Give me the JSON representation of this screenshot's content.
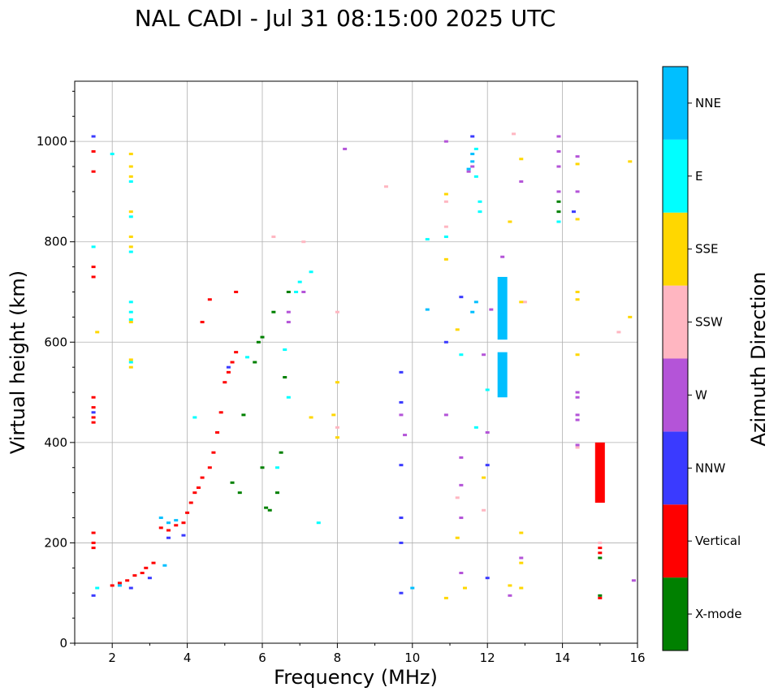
{
  "chart_data": {
    "type": "scatter",
    "title": "NAL CADI - Jul 31 08:15:00 2025 UTC",
    "xlabel": "Frequency (MHz)",
    "ylabel": "Virtual height (km)",
    "xlim": [
      1,
      16
    ],
    "ylim": [
      0,
      1120
    ],
    "xticks": [
      2,
      4,
      6,
      8,
      10,
      12,
      14,
      16
    ],
    "yticks": [
      0,
      200,
      400,
      600,
      800,
      1000
    ],
    "grid": true,
    "colorbar": {
      "label": "Azimuth Direction",
      "categories": [
        {
          "name": "X-mode",
          "color": "#008000"
        },
        {
          "name": "Vertical",
          "color": "#ff0000"
        },
        {
          "name": "NNW",
          "color": "#3a3aff"
        },
        {
          "name": "W",
          "color": "#b454d8"
        },
        {
          "name": "SSW",
          "color": "#ffb6c1"
        },
        {
          "name": "SSE",
          "color": "#ffd700"
        },
        {
          "name": "E",
          "color": "#00ffff"
        },
        {
          "name": "NNE",
          "color": "#00bfff"
        }
      ]
    },
    "series": [
      {
        "name": "Vertical",
        "points": [
          [
            1.5,
            980
          ],
          [
            1.5,
            940
          ],
          [
            1.5,
            750
          ],
          [
            1.5,
            730
          ],
          [
            1.5,
            490
          ],
          [
            1.5,
            470
          ],
          [
            1.5,
            450
          ],
          [
            1.5,
            440
          ],
          [
            1.5,
            220
          ],
          [
            1.5,
            200
          ],
          [
            1.5,
            190
          ],
          [
            2.0,
            115
          ],
          [
            2.2,
            120
          ],
          [
            2.4,
            125
          ],
          [
            2.6,
            135
          ],
          [
            2.8,
            140
          ],
          [
            2.9,
            150
          ],
          [
            3.1,
            160
          ],
          [
            3.3,
            230
          ],
          [
            3.5,
            225
          ],
          [
            3.7,
            235
          ],
          [
            3.9,
            240
          ],
          [
            4.0,
            260
          ],
          [
            4.1,
            280
          ],
          [
            4.2,
            300
          ],
          [
            4.3,
            310
          ],
          [
            4.4,
            330
          ],
          [
            4.6,
            350
          ],
          [
            4.7,
            380
          ],
          [
            4.8,
            420
          ],
          [
            4.9,
            460
          ],
          [
            5.0,
            520
          ],
          [
            5.1,
            540
          ],
          [
            5.2,
            560
          ],
          [
            5.3,
            580
          ],
          [
            4.4,
            640
          ],
          [
            4.6,
            685
          ],
          [
            5.3,
            700
          ],
          [
            15.0,
            390
          ],
          [
            15.0,
            370
          ],
          [
            15.0,
            350
          ],
          [
            15.0,
            330
          ],
          [
            15.0,
            310
          ],
          [
            15.0,
            290
          ],
          [
            15.0,
            190
          ],
          [
            15.0,
            180
          ],
          [
            15.0,
            90
          ]
        ]
      },
      {
        "name": "X-mode",
        "points": [
          [
            5.5,
            455
          ],
          [
            5.8,
            560
          ],
          [
            5.9,
            600
          ],
          [
            6.0,
            610
          ],
          [
            6.0,
            350
          ],
          [
            6.1,
            270
          ],
          [
            6.2,
            265
          ],
          [
            6.4,
            300
          ],
          [
            6.5,
            380
          ],
          [
            6.3,
            660
          ],
          [
            6.6,
            530
          ],
          [
            6.7,
            700
          ],
          [
            5.4,
            300
          ],
          [
            5.2,
            320
          ],
          [
            13.9,
            860
          ],
          [
            13.9,
            880
          ],
          [
            15.0,
            170
          ],
          [
            15.0,
            95
          ]
        ]
      },
      {
        "name": "NNW",
        "points": [
          [
            1.5,
            1010
          ],
          [
            1.5,
            460
          ],
          [
            1.5,
            95
          ],
          [
            2.5,
            110
          ],
          [
            3.0,
            130
          ],
          [
            3.5,
            210
          ],
          [
            3.9,
            215
          ],
          [
            5.1,
            550
          ],
          [
            9.7,
            540
          ],
          [
            9.7,
            480
          ],
          [
            9.7,
            355
          ],
          [
            9.7,
            250
          ],
          [
            9.7,
            200
          ],
          [
            9.7,
            100
          ],
          [
            10.9,
            600
          ],
          [
            11.6,
            1010
          ],
          [
            11.3,
            690
          ],
          [
            12.0,
            355
          ],
          [
            12.0,
            130
          ],
          [
            14.3,
            860
          ]
        ]
      },
      {
        "name": "W",
        "points": [
          [
            6.7,
            640
          ],
          [
            6.7,
            660
          ],
          [
            7.1,
            700
          ],
          [
            8.2,
            985
          ],
          [
            9.7,
            455
          ],
          [
            9.8,
            415
          ],
          [
            10.9,
            1000
          ],
          [
            10.9,
            455
          ],
          [
            11.3,
            370
          ],
          [
            11.3,
            315
          ],
          [
            11.3,
            250
          ],
          [
            11.3,
            140
          ],
          [
            11.5,
            940
          ],
          [
            11.6,
            950
          ],
          [
            11.9,
            575
          ],
          [
            12.0,
            420
          ],
          [
            12.1,
            665
          ],
          [
            12.4,
            770
          ],
          [
            12.6,
            95
          ],
          [
            12.9,
            920
          ],
          [
            12.9,
            170
          ],
          [
            13.9,
            1010
          ],
          [
            13.9,
            980
          ],
          [
            13.9,
            950
          ],
          [
            13.9,
            900
          ],
          [
            13.9,
            840
          ],
          [
            14.4,
            970
          ],
          [
            14.4,
            900
          ],
          [
            14.4,
            500
          ],
          [
            14.4,
            490
          ],
          [
            14.4,
            455
          ],
          [
            14.4,
            445
          ],
          [
            14.4,
            395
          ],
          [
            15.9,
            125
          ]
        ]
      },
      {
        "name": "SSW",
        "points": [
          [
            6.3,
            810
          ],
          [
            7.1,
            800
          ],
          [
            8.0,
            660
          ],
          [
            8.0,
            430
          ],
          [
            9.3,
            910
          ],
          [
            10.9,
            830
          ],
          [
            10.9,
            880
          ],
          [
            11.2,
            290
          ],
          [
            11.9,
            265
          ],
          [
            12.7,
            1015
          ],
          [
            13.0,
            680
          ],
          [
            14.4,
            390
          ],
          [
            15.0,
            200
          ],
          [
            15.5,
            620
          ]
        ]
      },
      {
        "name": "SSE",
        "points": [
          [
            2.5,
            975
          ],
          [
            2.5,
            950
          ],
          [
            2.5,
            930
          ],
          [
            2.5,
            860
          ],
          [
            2.5,
            810
          ],
          [
            2.5,
            790
          ],
          [
            2.5,
            640
          ],
          [
            2.5,
            565
          ],
          [
            2.5,
            550
          ],
          [
            1.6,
            620
          ],
          [
            7.3,
            450
          ],
          [
            7.9,
            455
          ],
          [
            8.0,
            520
          ],
          [
            8.0,
            410
          ],
          [
            10.9,
            895
          ],
          [
            10.9,
            765
          ],
          [
            10.9,
            90
          ],
          [
            11.2,
            625
          ],
          [
            11.2,
            210
          ],
          [
            11.4,
            110
          ],
          [
            11.9,
            330
          ],
          [
            12.6,
            840
          ],
          [
            12.6,
            115
          ],
          [
            12.9,
            965
          ],
          [
            12.9,
            680
          ],
          [
            12.9,
            220
          ],
          [
            12.9,
            160
          ],
          [
            12.9,
            110
          ],
          [
            14.4,
            955
          ],
          [
            14.4,
            845
          ],
          [
            14.4,
            700
          ],
          [
            14.4,
            685
          ],
          [
            14.4,
            575
          ],
          [
            15.8,
            960
          ],
          [
            15.8,
            650
          ]
        ]
      },
      {
        "name": "E",
        "points": [
          [
            1.5,
            790
          ],
          [
            2.5,
            920
          ],
          [
            2.5,
            850
          ],
          [
            2.5,
            780
          ],
          [
            2.5,
            680
          ],
          [
            2.5,
            660
          ],
          [
            2.5,
            645
          ],
          [
            2.5,
            560
          ],
          [
            1.6,
            110
          ],
          [
            2.0,
            975
          ],
          [
            4.2,
            450
          ],
          [
            5.6,
            570
          ],
          [
            6.4,
            350
          ],
          [
            6.9,
            700
          ],
          [
            7.0,
            720
          ],
          [
            7.3,
            740
          ],
          [
            7.5,
            240
          ],
          [
            6.7,
            490
          ],
          [
            6.6,
            585
          ],
          [
            11.7,
            985
          ],
          [
            11.7,
            930
          ],
          [
            11.8,
            880
          ],
          [
            11.8,
            860
          ],
          [
            11.7,
            430
          ],
          [
            12.0,
            505
          ],
          [
            11.3,
            575
          ],
          [
            10.4,
            805
          ],
          [
            10.9,
            810
          ],
          [
            13.9,
            840
          ]
        ]
      },
      {
        "name": "NNE",
        "points": [
          [
            11.6,
            975
          ],
          [
            11.6,
            960
          ],
          [
            11.5,
            945
          ],
          [
            11.7,
            680
          ],
          [
            11.6,
            660
          ],
          [
            12.4,
            720
          ],
          [
            12.4,
            700
          ],
          [
            12.4,
            680
          ],
          [
            12.4,
            660
          ],
          [
            12.4,
            640
          ],
          [
            12.4,
            620
          ],
          [
            12.4,
            575
          ],
          [
            12.4,
            560
          ],
          [
            12.4,
            540
          ],
          [
            12.4,
            520
          ],
          [
            12.4,
            500
          ],
          [
            3.3,
            250
          ],
          [
            3.5,
            240
          ],
          [
            3.7,
            245
          ],
          [
            3.4,
            155
          ],
          [
            2.2,
            115
          ],
          [
            10.4,
            665
          ],
          [
            10.0,
            110
          ]
        ]
      }
    ],
    "bars": [
      {
        "series": "NNE",
        "x": 12.4,
        "y0": 605,
        "y1": 730
      },
      {
        "series": "NNE",
        "x": 12.4,
        "y0": 490,
        "y1": 580
      },
      {
        "series": "Vertical",
        "x": 15.0,
        "y0": 280,
        "y1": 400
      }
    ]
  }
}
